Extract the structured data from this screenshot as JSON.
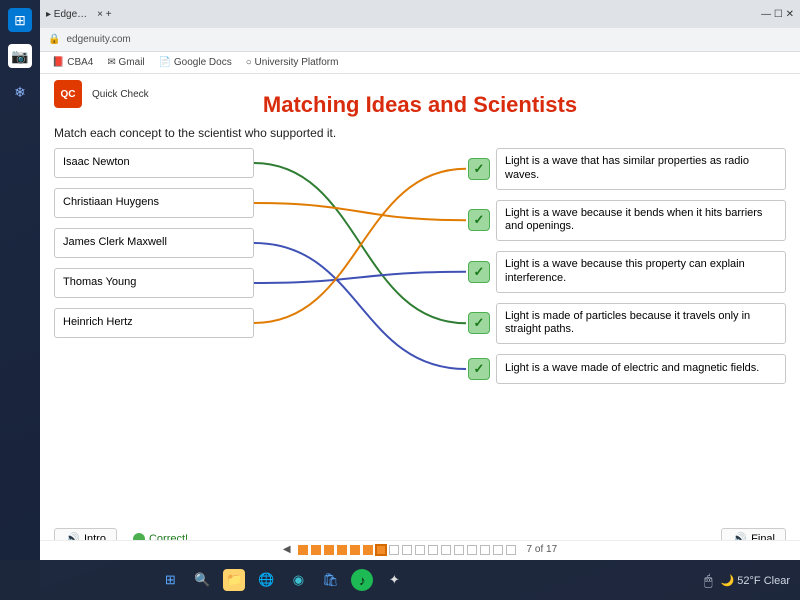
{
  "browser": {
    "url": "edgenuity.com",
    "bookmarks": [
      "CBA4",
      "Gmail",
      "Google Docs",
      "University Platform"
    ]
  },
  "app": {
    "logo_text": "QC",
    "logo_label": "Quick Check",
    "title": "Matching Ideas and Scientists",
    "instruction": "Match each concept to the scientist who supported it."
  },
  "scientists": [
    "Isaac Newton",
    "Christiaan Huygens",
    "James Clerk Maxwell",
    "Thomas Young",
    "Heinrich Hertz"
  ],
  "concepts": [
    "Light is a wave that has similar properties as radio waves.",
    "Light is a wave because it bends when it hits barriers and openings.",
    "Light is a wave because this property can explain interference.",
    "Light is made of particles because it travels only in straight paths.",
    "Light is a wave made of electric and magnetic fields."
  ],
  "connections": [
    {
      "from": 0,
      "to": 3,
      "color": "#2e7d32"
    },
    {
      "from": 1,
      "to": 1,
      "color": "#e07b00"
    },
    {
      "from": 2,
      "to": 4,
      "color": "#3f51b5"
    },
    {
      "from": 3,
      "to": 2,
      "color": "#3f51b5"
    },
    {
      "from": 4,
      "to": 0,
      "color": "#e07b00"
    }
  ],
  "line_width": 2,
  "footer": {
    "intro": "Intro",
    "final": "Final",
    "correct": "Correct!"
  },
  "progress": {
    "current": 7,
    "total": 17,
    "label": "7 of 17"
  },
  "systray": {
    "weather": "52°F Clear",
    "weather_icon": "🌙"
  },
  "colors": {
    "title": "#d82c0d",
    "check_bg": "#9fd89f",
    "check_border": "#4caf50",
    "progress_done": "#f28c28"
  }
}
